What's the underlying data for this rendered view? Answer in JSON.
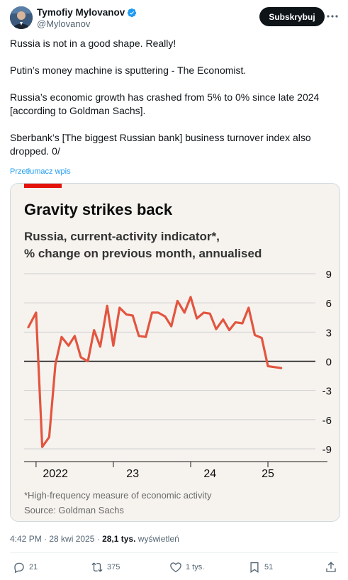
{
  "author": {
    "display_name": "Tymofiy Mylovanov",
    "handle": "@Mylovanov",
    "verified": true,
    "avatar_icon": "profile-photo"
  },
  "subscribe_label": "Subskrybuj",
  "tweet": {
    "paragraphs": [
      "Russia is not in a good shape. Really!",
      "Putin’s money machine is sputtering - The Economist.",
      "Russia’s economic growth has crashed from 5% to 0% since late 2024 [according to Goldman Sachs].",
      "Sberbank’s [The biggest Russian bank] business turnover index also dropped. 0/"
    ],
    "translate_label": "Przetłumacz wpis",
    "time": "4:42 PM · 28 kwi 2025 · ",
    "views_count": "28,1 tys.",
    "views_label": " wyświetleń"
  },
  "actions": {
    "replies": "21",
    "reposts": "375",
    "likes": "1 tys.",
    "bookmarks": "51"
  },
  "colors": {
    "accent": "#1d9bf0",
    "chart_line": "#e3553f",
    "economist_red": "#e3120b",
    "chart_bg": "#f6f3ef"
  },
  "chart_data": {
    "type": "line",
    "title": "Gravity strikes back",
    "subtitle_line1": "Russia, current-activity indicator*,",
    "subtitle_line2": "% change on previous month, annualised",
    "footnote": "*High-frequency measure of economic activity",
    "source": "Source: Goldman Sachs",
    "ylim": [
      -9,
      9
    ],
    "yticks": [
      "9",
      "6",
      "3",
      "0",
      "-3",
      "-6",
      "-9"
    ],
    "ytick_values": [
      9,
      6,
      3,
      0,
      -3,
      -6,
      -9
    ],
    "xticks": [
      "2022",
      "23",
      "24",
      "25"
    ],
    "xtick_values": [
      2022.25,
      2023.25,
      2024.25,
      2025.0
    ],
    "x_boundaries": [
      2022.0,
      2023.0,
      2024.0,
      2025.0
    ],
    "grid": true,
    "series": [
      {
        "x": [
          2021.9,
          2022.0,
          2022.08,
          2022.17,
          2022.25,
          2022.33,
          2022.42,
          2022.5,
          2022.58,
          2022.67,
          2022.75,
          2022.83,
          2022.92,
          2023.0,
          2023.08,
          2023.17,
          2023.25,
          2023.33,
          2023.42,
          2023.5,
          2023.58,
          2023.67,
          2023.75,
          2023.83,
          2023.92,
          2024.0,
          2024.08,
          2024.17,
          2024.25,
          2024.33,
          2024.42,
          2024.5,
          2024.58,
          2024.67,
          2024.75,
          2024.83,
          2024.92,
          2025.0,
          2025.08,
          2025.17
        ],
        "values": [
          3.5,
          5.0,
          -8.8,
          -7.8,
          -0.3,
          2.5,
          1.6,
          2.6,
          0.4,
          0.0,
          3.2,
          1.5,
          5.7,
          1.6,
          5.5,
          4.8,
          4.7,
          2.6,
          2.5,
          5.0,
          5.0,
          4.6,
          3.6,
          6.2,
          5.0,
          6.6,
          4.4,
          5.0,
          4.9,
          3.3,
          4.3,
          3.2,
          4.0,
          3.9,
          5.5,
          2.7,
          2.4,
          -0.5,
          -0.6,
          -0.7
        ]
      }
    ]
  }
}
